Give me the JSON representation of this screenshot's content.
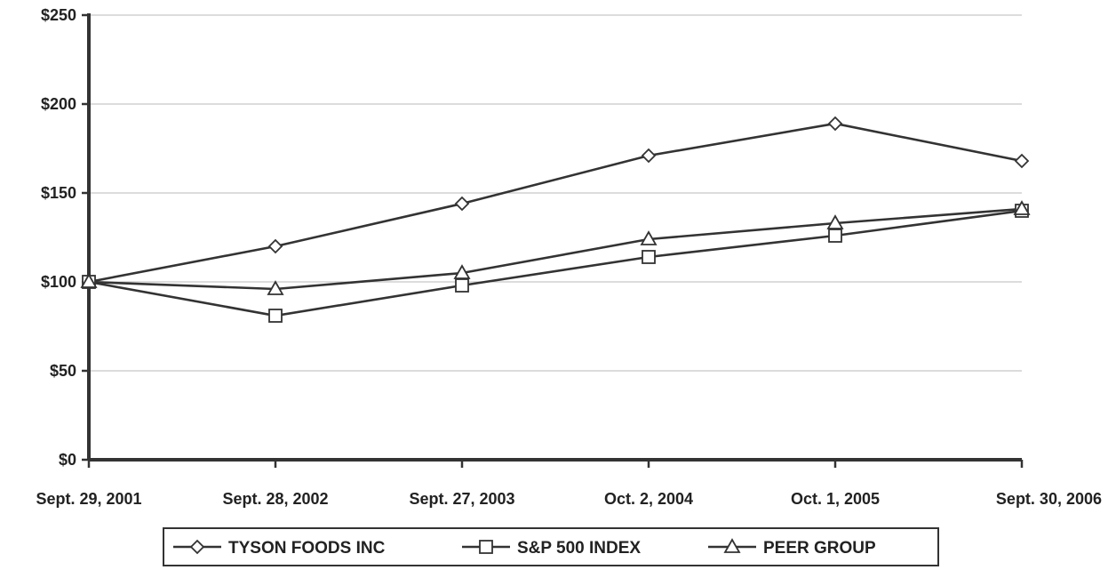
{
  "chart_data": {
    "type": "line",
    "title": "",
    "xlabel": "",
    "ylabel": "",
    "categories": [
      "Sept. 29, 2001",
      "Sept. 28, 2002",
      "Sept. 27, 2003",
      "Oct. 2, 2004",
      "Oct. 1, 2005",
      "Sept. 30, 2006"
    ],
    "ylim": [
      0,
      250
    ],
    "yticks": [
      0,
      50,
      100,
      150,
      200,
      250
    ],
    "ytick_labels": [
      "$0",
      "$50",
      "$100",
      "$150",
      "$200",
      "$250"
    ],
    "grid": true,
    "legend_position": "bottom",
    "series": [
      {
        "name": "TYSON FOODS INC",
        "marker": "diamond",
        "values": [
          100,
          120,
          144,
          171,
          189,
          168
        ]
      },
      {
        "name": "S&P 500 INDEX",
        "marker": "square",
        "values": [
          100,
          81,
          98,
          114,
          126,
          140
        ]
      },
      {
        "name": "PEER GROUP",
        "marker": "triangle",
        "values": [
          100,
          96,
          105,
          124,
          133,
          141
        ]
      }
    ]
  },
  "colors": {
    "line": "#333333",
    "grid": "#c8c8c8",
    "axis": "#333333"
  }
}
